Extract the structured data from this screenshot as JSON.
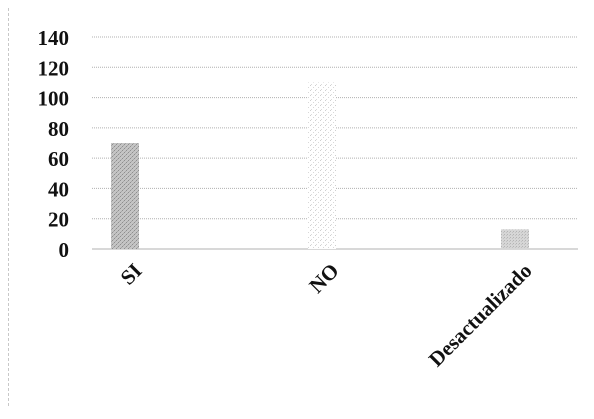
{
  "chart_data": {
    "type": "bar",
    "categories": [
      "SI",
      "NO",
      "Desactualizado"
    ],
    "values": [
      70,
      110,
      13
    ],
    "ylim": [
      0,
      140
    ],
    "yticks": [
      0,
      20,
      40,
      60,
      80,
      100,
      120,
      140
    ],
    "grid": true,
    "legend": "none",
    "colors": {
      "bar_fill": "#b9b9b9",
      "bar_fill_light": "#e2e2e2",
      "grid": "#b0b0b0",
      "text": "#111111"
    }
  }
}
